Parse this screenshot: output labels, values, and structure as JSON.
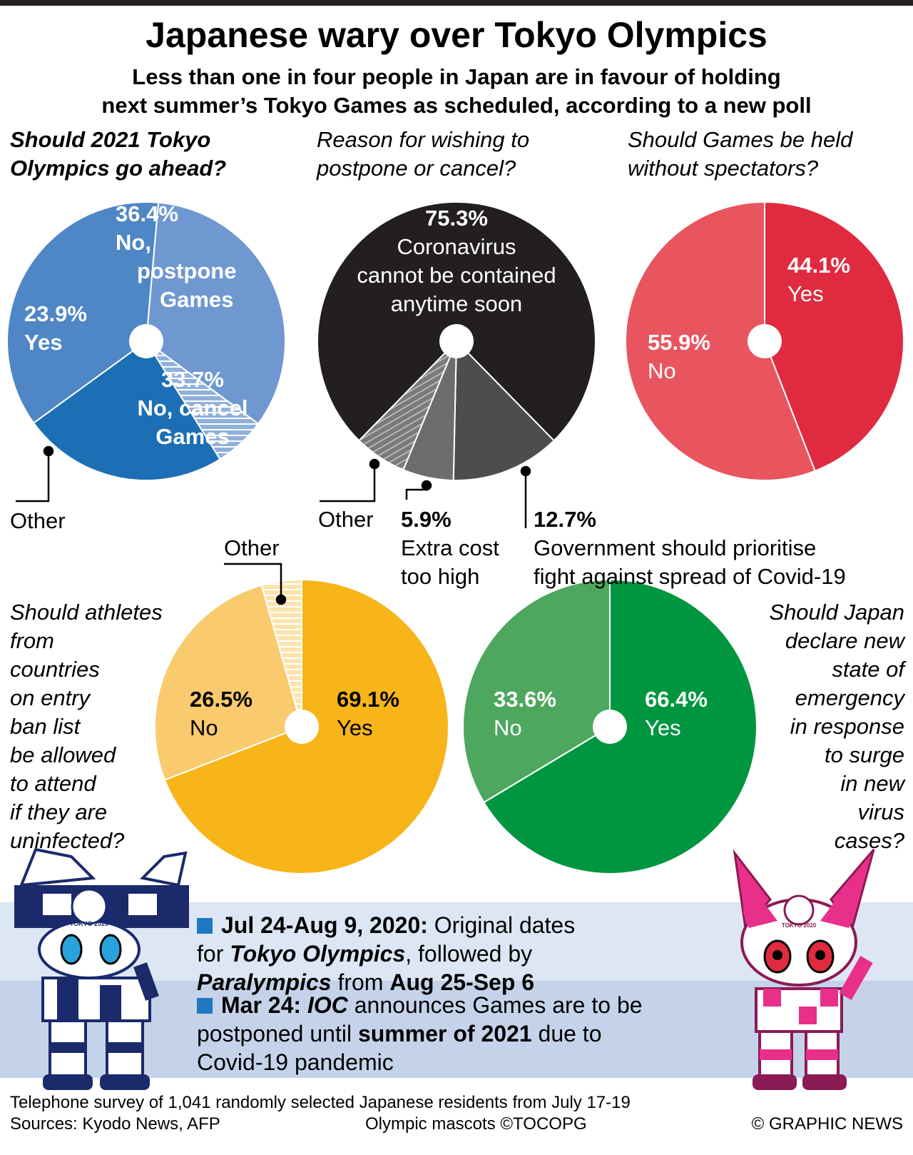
{
  "header": {
    "title": "Japanese wary over Tokyo Olympics",
    "subtitle_line1": "Less than one in four people in Japan are in favour of holding",
    "subtitle_line2": "next summer’s Tokyo Games as scheduled, according to a new poll"
  },
  "chart_data": [
    {
      "type": "pie",
      "title": "Should 2021 Tokyo Olympics go ahead?",
      "title_lines": [
        "Should 2021 Tokyo",
        "Olympics go ahead?"
      ],
      "slices": [
        {
          "label": "No, postpone Games",
          "label_lines": [
            "No,",
            "postpone",
            "Games"
          ],
          "value": 36.4,
          "display": "36.4%",
          "color": "#4f86c6"
        },
        {
          "label": "No, cancel Games",
          "label_lines": [
            "No, cancel",
            "Games"
          ],
          "value": 33.7,
          "display": "33.7%",
          "color": "#6f98d1"
        },
        {
          "label": "Other",
          "value": 6.0,
          "display": "",
          "color": "#9db8dd",
          "hatched": true
        },
        {
          "label": "Yes",
          "label_lines": [
            "Yes"
          ],
          "value": 23.9,
          "display": "23.9%",
          "color": "#1c6fb4"
        }
      ]
    },
    {
      "type": "pie",
      "title": "Reason for wishing to postpone or cancel?",
      "title_lines": [
        "Reason for wishing to",
        "postpone or cancel?"
      ],
      "slices": [
        {
          "label": "Coronavirus cannot be contained anytime soon",
          "label_lines": [
            "Coronavirus",
            "cannot be contained",
            "anytime soon"
          ],
          "value": 75.3,
          "display": "75.3%",
          "color": "#231f20"
        },
        {
          "label": "Government should prioritise fight against spread of Covid-19",
          "label_lines": [
            "Government should prioritise",
            "fight against spread of Covid-19"
          ],
          "value": 12.7,
          "display": "12.7%",
          "color": "#4d4d4d"
        },
        {
          "label": "Extra cost too high",
          "label_lines": [
            "Extra cost",
            "too high"
          ],
          "value": 5.9,
          "display": "5.9%",
          "color": "#6d6d6d"
        },
        {
          "label": "Other",
          "value": 6.1,
          "display": "",
          "color": "#8a8a8a",
          "hatched": true
        }
      ]
    },
    {
      "type": "pie",
      "title": "Should Games be held without spectators?",
      "title_lines": [
        "Should Games be held",
        "without spectators?"
      ],
      "slices": [
        {
          "label": "Yes",
          "value": 44.1,
          "display": "44.1%",
          "color": "#e02a3f"
        },
        {
          "label": "No",
          "value": 55.9,
          "display": "55.9%",
          "color": "#e8555f"
        }
      ]
    },
    {
      "type": "pie",
      "title": "Should athletes from countries on entry ban list be allowed to attend if they are uninfected?",
      "title_lines": [
        "Should athletes",
        "from",
        "countries",
        "on entry",
        "ban list",
        "be allowed",
        "to attend",
        "if they are",
        "uninfected?"
      ],
      "slices": [
        {
          "label": "Yes",
          "value": 69.1,
          "display": "69.1%",
          "color": "#f7b519"
        },
        {
          "label": "No",
          "value": 26.5,
          "display": "26.5%",
          "color": "#f9cb6e"
        },
        {
          "label": "Other",
          "value": 4.4,
          "display": "",
          "color": "#fbe2a8",
          "hatched": true
        }
      ]
    },
    {
      "type": "pie",
      "title": "Should Japan declare new state of emergency in response to surge in new virus cases?",
      "title_lines": [
        "Should Japan",
        "declare new",
        "state of",
        "emergency",
        "in response",
        "to surge",
        "in new",
        "virus",
        "cases?"
      ],
      "slices": [
        {
          "label": "Yes",
          "value": 66.4,
          "display": "66.4%",
          "color": "#009640"
        },
        {
          "label": "No",
          "value": 33.6,
          "display": "33.6%",
          "color": "#4ea75f"
        }
      ]
    }
  ],
  "other_label": "Other",
  "timeline": {
    "item1": {
      "date": "Jul 24-Aug 9, 2020:",
      "t1": " Original dates",
      "t2": "for ",
      "olympics": "Tokyo Olympics",
      "t3": ", followed by",
      "paralympics": "Paralympics",
      "t4": " from ",
      "date2": "Aug 25-Sep 6"
    },
    "item2": {
      "date": "Mar 24:",
      "ioc": "IOC",
      "t1": " announces Games are to be",
      "t2": "postponed until ",
      "summer": "summer of 2021",
      "t3": " due to",
      "t4": "Covid-19 pandemic"
    }
  },
  "footer": {
    "survey": "Telephone survey of 1,041 randomly selected Japanese residents from July 17-19",
    "sources": "Sources: Kyodo News, AFP",
    "mascots": "Olympic mascots ©TOCOPG",
    "credit": "© GRAPHIC NEWS"
  },
  "mascot_text": {
    "left": "TOKYO 2020",
    "right": "TOKYO 2020"
  }
}
